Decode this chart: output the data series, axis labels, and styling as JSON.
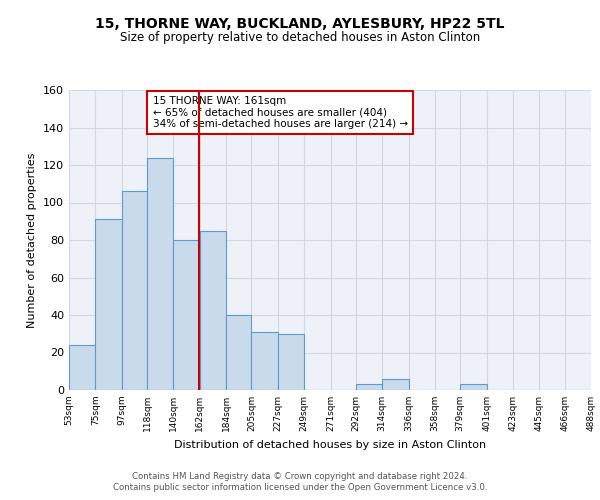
{
  "title": "15, THORNE WAY, BUCKLAND, AYLESBURY, HP22 5TL",
  "subtitle": "Size of property relative to detached houses in Aston Clinton",
  "xlabel": "Distribution of detached houses by size in Aston Clinton",
  "ylabel": "Number of detached properties",
  "bin_edges": [
    53,
    75,
    97,
    118,
    140,
    162,
    184,
    205,
    227,
    249,
    271,
    292,
    314,
    336,
    358,
    379,
    401,
    423,
    445,
    466,
    488
  ],
  "bin_labels": [
    "53sqm",
    "75sqm",
    "97sqm",
    "118sqm",
    "140sqm",
    "162sqm",
    "184sqm",
    "205sqm",
    "227sqm",
    "249sqm",
    "271sqm",
    "292sqm",
    "314sqm",
    "336sqm",
    "358sqm",
    "379sqm",
    "401sqm",
    "423sqm",
    "445sqm",
    "466sqm",
    "488sqm"
  ],
  "counts": [
    24,
    91,
    106,
    124,
    80,
    85,
    40,
    31,
    30,
    0,
    0,
    3,
    6,
    0,
    0,
    3,
    0,
    0,
    0,
    0
  ],
  "bar_facecolor": "#c9daea",
  "bar_edgecolor": "#5b9bd5",
  "grid_color": "#d0d8e4",
  "background_color": "#eef2f8",
  "vline_x": 161,
  "vline_color": "#cc0000",
  "annotation_text": "15 THORNE WAY: 161sqm\n← 65% of detached houses are smaller (404)\n34% of semi-detached houses are larger (214) →",
  "annotation_box_edgecolor": "#cc0000",
  "ylim": [
    0,
    160
  ],
  "yticks": [
    0,
    20,
    40,
    60,
    80,
    100,
    120,
    140,
    160
  ],
  "footer_line1": "Contains HM Land Registry data © Crown copyright and database right 2024.",
  "footer_line2": "Contains public sector information licensed under the Open Government Licence v3.0."
}
